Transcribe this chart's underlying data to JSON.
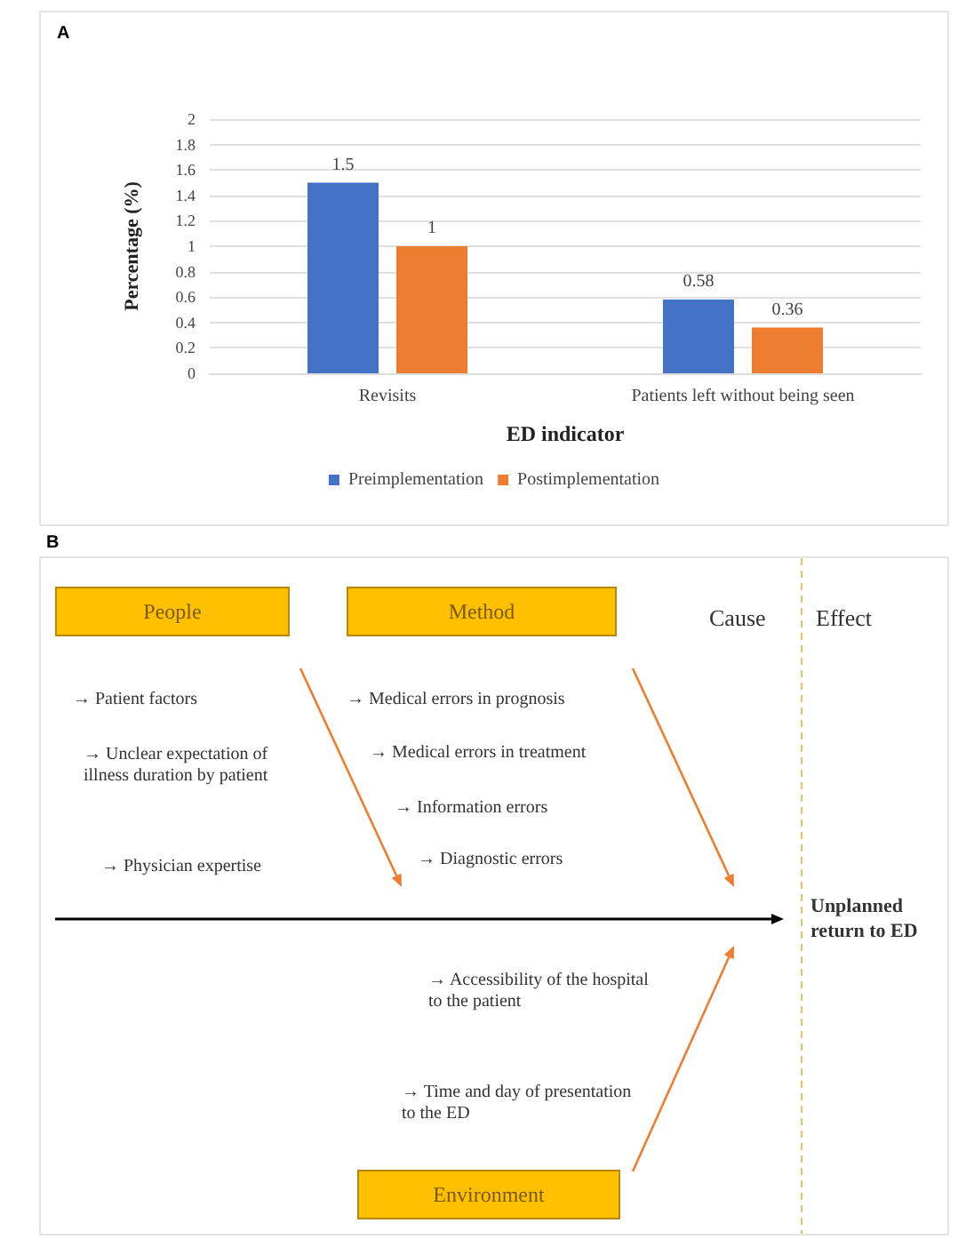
{
  "chart_data": [
    {
      "type": "bar",
      "title": "A",
      "categories": [
        "Revisits",
        "Patients left without being seen"
      ],
      "xlabel": "ED indicator",
      "ylabel": "Percentage (%)",
      "series": [
        {
          "name": "Preimplementation",
          "color": "#4472c4",
          "values": [
            1.5,
            0.58
          ]
        },
        {
          "name": "Postimplementation",
          "color": "#ed7d31",
          "values": [
            1,
            0.36
          ]
        }
      ],
      "ylim": [
        0,
        2
      ],
      "yticks": [
        0,
        0.2,
        0.4,
        0.6,
        0.8,
        1,
        1.2,
        1.4,
        1.6,
        1.8,
        2
      ],
      "grid": "y",
      "legend": "bottom",
      "data_labels": true
    },
    {
      "type": "other",
      "title": "B",
      "annotations": [
        "People",
        "Method",
        "Cause",
        "Effect",
        "→ Patient factors",
        "→ Unclear expectation of illness duration by patient",
        "→ Physician expertise",
        "→ Medical errors in prognosis",
        "→ Medical errors in treatment",
        "→ Information errors",
        "→ Diagnostic errors",
        "Unplanned return to ED",
        "→ Accessibility of the hospital to the patient",
        "→ Time and day of presentation to the ED",
        "Environment"
      ]
    }
  ]
}
